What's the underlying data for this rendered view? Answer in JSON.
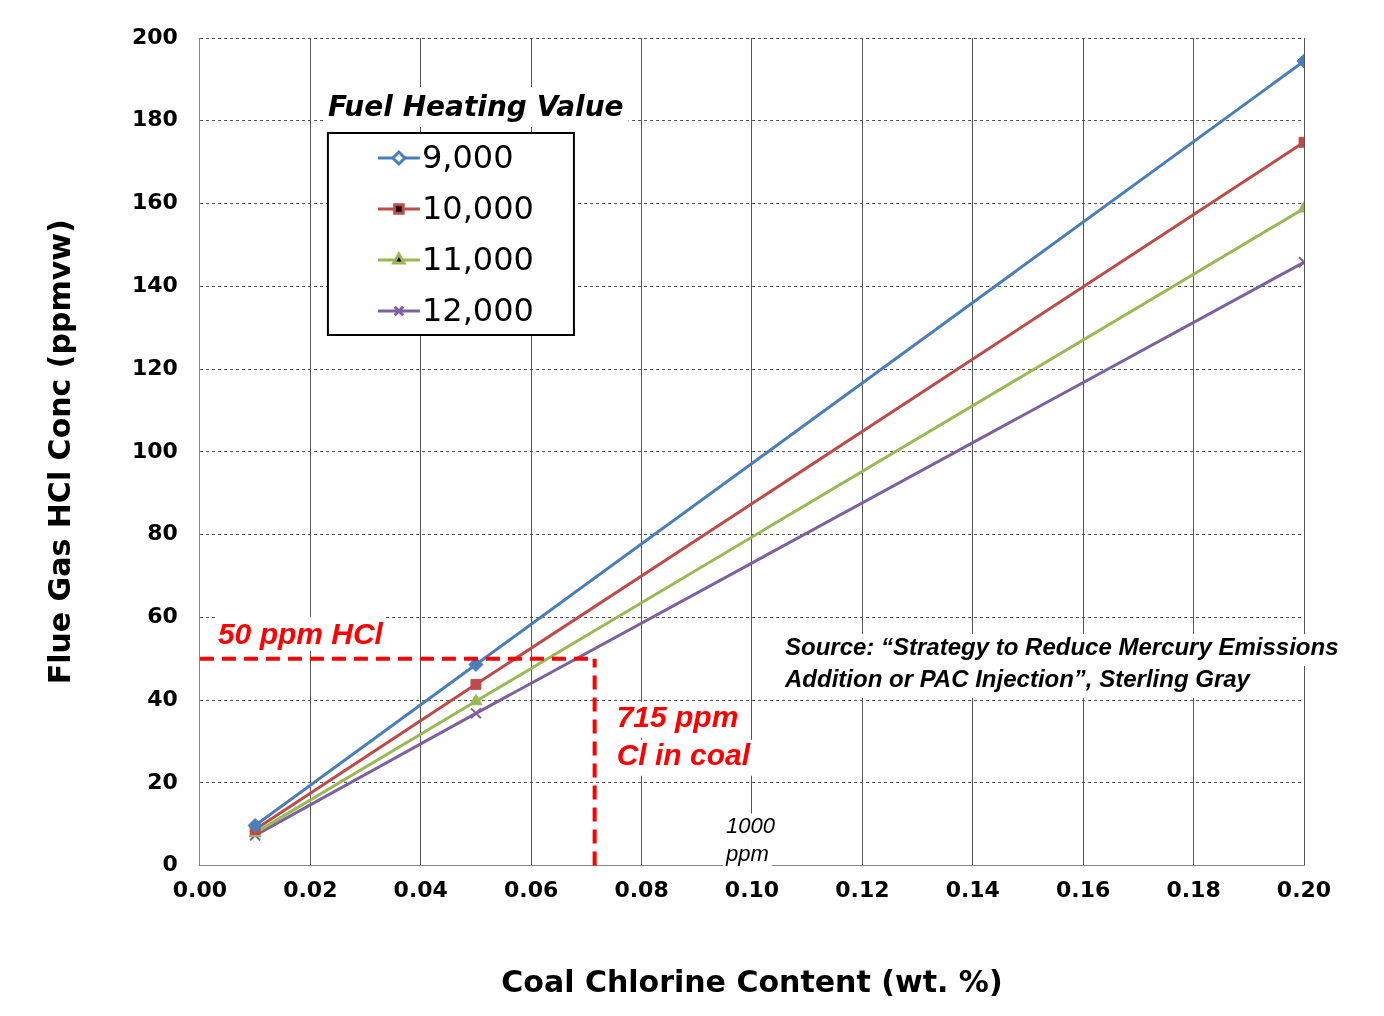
{
  "chart_data": {
    "type": "line",
    "xlabel": "Coal Chlorine Content (wt. %)",
    "ylabel": "Flue Gas HCl Conc (ppmvw)",
    "legend_title": "Fuel Heating Value",
    "legend": "top left",
    "grid": true,
    "line_style": "solid",
    "x": [
      0.01,
      0.05,
      0.2
    ],
    "xlim": [
      0,
      0.2
    ],
    "xticks": [
      {
        "value": 0,
        "label": "0.00"
      },
      {
        "value": 0.02,
        "label": "0.02"
      },
      {
        "value": 0.04,
        "label": "0.04"
      },
      {
        "value": 0.06,
        "label": "0.06"
      },
      {
        "value": 0.08,
        "label": "0.08"
      },
      {
        "value": 0.1,
        "label": "0.10"
      },
      {
        "value": 0.12,
        "label": "0.12"
      },
      {
        "value": 0.14,
        "label": "0.14"
      },
      {
        "value": 0.16,
        "label": "0.16"
      },
      {
        "value": 0.18,
        "label": "0.18"
      },
      {
        "value": 0.2,
        "label": "0.20"
      }
    ],
    "ylim": [
      0,
      200
    ],
    "yticks": [
      0,
      20,
      40,
      60,
      80,
      100,
      120,
      140,
      160,
      180,
      200
    ],
    "series": [
      {
        "name": "9,000",
        "color": "#4a7ebb",
        "marker": "diamond",
        "values": [
          9.7,
          48.6,
          194.4
        ]
      },
      {
        "name": "10,000",
        "color": "#be4b48",
        "marker": "square",
        "values": [
          8.7,
          43.8,
          174.8
        ]
      },
      {
        "name": "11,000",
        "color": "#98b954",
        "marker": "triangle",
        "values": [
          7.9,
          39.7,
          158.8
        ]
      },
      {
        "name": "12,000",
        "color": "#7d60a0",
        "marker": "cross",
        "values": [
          7.3,
          36.8,
          145.8
        ]
      }
    ],
    "ref_lines": [
      {
        "axis": "y",
        "value": 50,
        "label": "50 ppm HCl",
        "color": "#ff0000",
        "line_style": "dashed"
      },
      {
        "axis": "x",
        "value": 0.0715,
        "label": "715 ppm\nCl in coal",
        "color": "#ff0000",
        "line_style": "dashed"
      }
    ],
    "annotations": [
      "1000\nppm",
      "Source: “Strategy to Reduce Mercury Emissions\nAddition or PAC Injection”, Sterling Gray"
    ]
  }
}
